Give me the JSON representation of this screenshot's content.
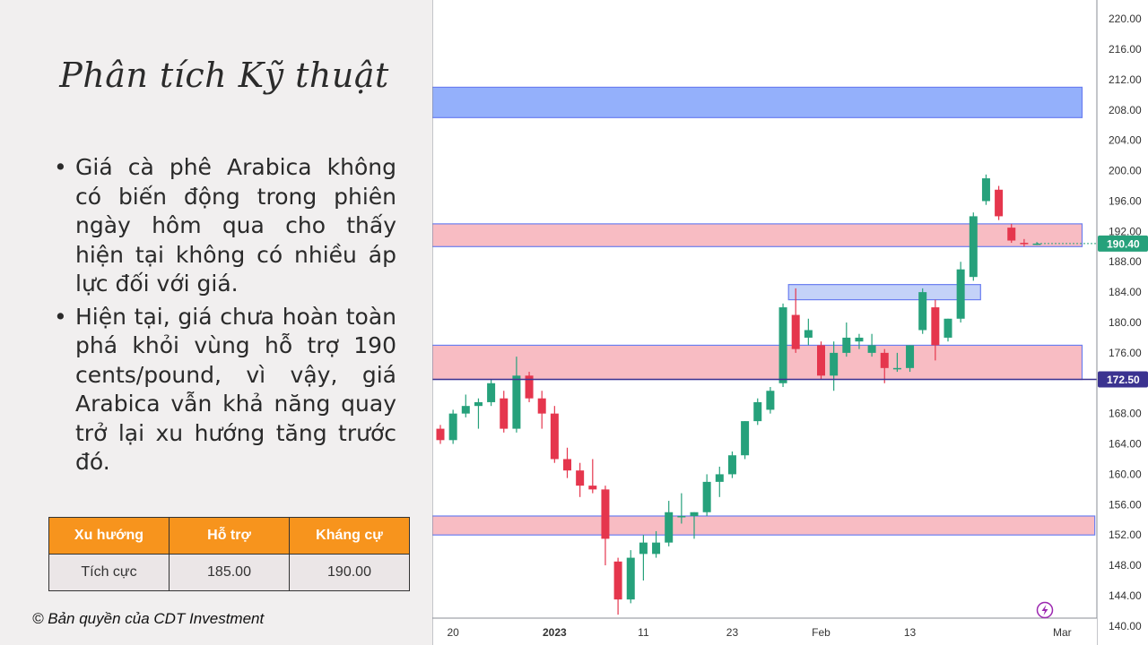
{
  "slide": {
    "title": "Phân tích Kỹ thuật",
    "bullets": [
      "Giá cà phê Arabica không có biến động trong phiên ngày hôm qua cho thấy hiện tại không có nhiều áp lực đối với giá.",
      "Hiện tại, giá chưa hoàn toàn phá khỏi vùng hỗ trợ 190 cents/pound, vì vậy, giá Arabica vẫn khả năng quay trở lại xu hướng tăng trước đó."
    ],
    "bullet_symbol": "•",
    "copyright": "© Bản quyền của CDT Investment"
  },
  "table": {
    "headers": [
      "Xu hướng",
      "Hỗ trợ",
      "Kháng cự"
    ],
    "row": [
      "Tích cực",
      "185.00",
      "190.00"
    ]
  },
  "colors": {
    "up": "#26a17b",
    "down": "#e5364d",
    "zone_red_fill": "#f8bcc3",
    "zone_blue_fill": "#94b0fb",
    "zone_lightblue_fill": "#c4d2f8",
    "zone_border": "#6a7ef0",
    "accent_header": "#f7941d",
    "price_line": "#3b3390",
    "last_price_bg": "#26a17b"
  },
  "chart_data": {
    "type": "candlestick",
    "y_ticks": [
      "220.00",
      "216.00",
      "212.00",
      "208.00",
      "204.00",
      "200.00",
      "196.00",
      "192.00",
      "188.00",
      "184.00",
      "180.00",
      "176.00",
      "172.00",
      "168.00",
      "164.00",
      "160.00",
      "156.00",
      "152.00",
      "148.00",
      "144.00",
      "140.00"
    ],
    "x_ticks": [
      {
        "label": "20",
        "index": 1,
        "bold": false
      },
      {
        "label": "2023",
        "index": 9,
        "bold": true
      },
      {
        "label": "11",
        "index": 16,
        "bold": false
      },
      {
        "label": "23",
        "index": 23,
        "bold": false
      },
      {
        "label": "Feb",
        "index": 30,
        "bold": false
      },
      {
        "label": "13",
        "index": 37,
        "bold": false
      },
      {
        "label": "Mar",
        "index": 49,
        "bold": false
      }
    ],
    "ylim": [
      137.5,
      222.5
    ],
    "zones": [
      {
        "from": 207,
        "to": 211,
        "style": "blue",
        "end_index": 50
      },
      {
        "from": 190,
        "to": 193,
        "style": "red",
        "end_index": 50
      },
      {
        "from": 183,
        "to": 185,
        "style": "lightblue",
        "start_index": 28,
        "end_index": 42
      },
      {
        "from": 172.5,
        "to": 177,
        "style": "red",
        "end_index": 50
      },
      {
        "from": 152,
        "to": 154.5,
        "style": "red",
        "end_index": 51
      }
    ],
    "price_line": {
      "value": 172.5,
      "label": "172.50"
    },
    "last_price": {
      "value": 190.4,
      "label": "190.40"
    },
    "candles": [
      [
        166.0,
        166.5,
        164.0,
        164.5
      ],
      [
        164.5,
        168.5,
        164.0,
        168.0
      ],
      [
        168.0,
        170.5,
        167.5,
        169.0
      ],
      [
        169.0,
        170.0,
        166.0,
        169.5
      ],
      [
        169.5,
        172.5,
        169.0,
        172.0
      ],
      [
        170.0,
        171.0,
        165.5,
        166.0
      ],
      [
        166.0,
        175.5,
        165.5,
        173.0
      ],
      [
        173.0,
        173.5,
        169.5,
        170.0
      ],
      [
        170.0,
        171.0,
        166.0,
        168.0
      ],
      [
        168.0,
        169.0,
        161.5,
        162.0
      ],
      [
        162.0,
        163.5,
        159.5,
        160.5
      ],
      [
        160.5,
        161.5,
        157.0,
        158.5
      ],
      [
        158.5,
        162.0,
        157.5,
        158.0
      ],
      [
        158.0,
        158.5,
        148.0,
        151.5
      ],
      [
        148.5,
        149.0,
        141.5,
        143.5
      ],
      [
        143.5,
        150.0,
        143.0,
        149.0
      ],
      [
        149.5,
        152.0,
        146.0,
        151.0
      ],
      [
        149.5,
        152.5,
        149.0,
        151.0
      ],
      [
        151.0,
        156.5,
        150.5,
        155.0
      ],
      [
        154.5,
        157.5,
        153.5,
        154.5
      ],
      [
        154.5,
        155.0,
        151.5,
        155.0
      ],
      [
        155.0,
        160.0,
        154.5,
        159.0
      ],
      [
        159.0,
        161.0,
        157.0,
        160.0
      ],
      [
        160.0,
        163.0,
        159.5,
        162.5
      ],
      [
        162.5,
        167.0,
        162.0,
        167.0
      ],
      [
        167.0,
        170.0,
        166.5,
        169.5
      ],
      [
        168.5,
        171.5,
        168.0,
        171.0
      ],
      [
        172.0,
        182.5,
        171.5,
        182.0
      ],
      [
        181.0,
        184.5,
        176.0,
        176.5
      ],
      [
        178.0,
        180.5,
        177.0,
        179.0
      ],
      [
        177.0,
        177.5,
        172.5,
        173.0
      ],
      [
        173.0,
        177.5,
        171.0,
        176.0
      ],
      [
        176.0,
        180.0,
        175.5,
        178.0
      ],
      [
        177.5,
        178.5,
        176.5,
        178.0
      ],
      [
        176.0,
        178.5,
        175.5,
        177.0
      ],
      [
        176.0,
        176.5,
        172.0,
        174.0
      ],
      [
        174.0,
        176.0,
        173.5,
        174.0
      ],
      [
        174.0,
        177.0,
        173.5,
        177.0
      ],
      [
        179.0,
        184.5,
        178.5,
        184.0
      ],
      [
        182.0,
        183.0,
        175.0,
        177.0
      ],
      [
        178.0,
        180.5,
        177.5,
        180.5
      ],
      [
        180.5,
        188.0,
        180.0,
        187.0
      ],
      [
        186.0,
        194.5,
        185.5,
        194.0
      ],
      [
        196.0,
        199.5,
        195.5,
        199.0
      ],
      [
        197.5,
        198.0,
        193.5,
        194.0
      ],
      [
        192.5,
        193.0,
        190.5,
        190.8
      ],
      [
        190.5,
        191.0,
        190.0,
        190.4
      ],
      [
        190.4,
        190.6,
        190.2,
        190.4
      ]
    ]
  }
}
